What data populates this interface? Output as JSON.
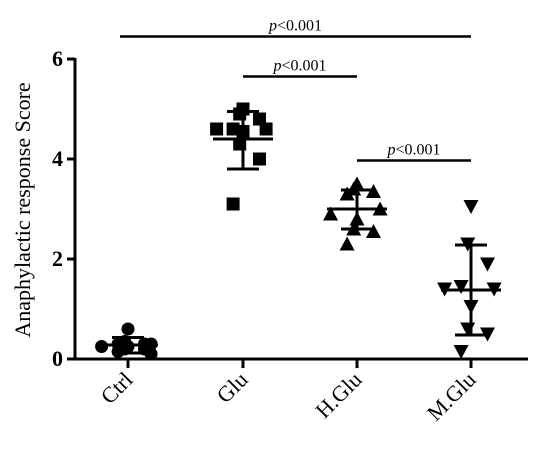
{
  "chart_data": {
    "type": "scatter",
    "ylabel": "Anaphylactic response Score",
    "ylim": [
      0,
      6
    ],
    "yticks": [
      0,
      2,
      4,
      6
    ],
    "categories": [
      "Ctrl",
      "Glu",
      "H.Glu",
      "M.Glu"
    ],
    "groups": [
      {
        "name": "Ctrl",
        "marker": "circle",
        "points": [
          0.25,
          0.6,
          0.35,
          0.2,
          0.3,
          0.1,
          0.2,
          0.3,
          0.15,
          0.3,
          0.25
        ],
        "mean": 0.28,
        "sd_low": 0.12,
        "sd_high": 0.43
      },
      {
        "name": "Glu",
        "marker": "square",
        "points": [
          4.6,
          4.6,
          4.9,
          5.0,
          4.6,
          4.55,
          4.3,
          4.0,
          3.1,
          4.8
        ],
        "mean": 4.4,
        "sd_low": 3.8,
        "sd_high": 4.95
      },
      {
        "name": "H.Glu",
        "marker": "triangle-up",
        "points": [
          3.5,
          3.35,
          3.3,
          3.4,
          3.0,
          2.9,
          2.8,
          2.6,
          2.3,
          2.55
        ],
        "mean": 3.0,
        "sd_low": 2.6,
        "sd_high": 3.38
      },
      {
        "name": "M.Glu",
        "marker": "triangle-down",
        "points": [
          3.05,
          2.3,
          1.9,
          1.45,
          1.4,
          1.4,
          1.05,
          0.6,
          0.5,
          0.15
        ],
        "mean": 1.38,
        "sd_low": 0.48,
        "sd_high": 2.28
      }
    ],
    "comparisons": [
      {
        "from": "Ctrl",
        "to": "M.Glu",
        "label_p": "p",
        "label_rest": "<0.001",
        "y": 6.45
      },
      {
        "from": "Glu",
        "to": "H.Glu",
        "label_p": "p",
        "label_rest": "<0.001",
        "y": 5.65
      },
      {
        "from": "H.Glu",
        "to": "M.Glu",
        "label_p": "p",
        "label_rest": "<0.001",
        "y": 3.97
      }
    ],
    "grid": false
  }
}
